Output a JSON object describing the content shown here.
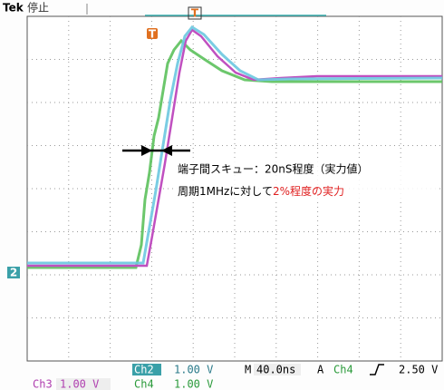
{
  "header": {
    "brand": "Tek",
    "status": "停止"
  },
  "markers": {
    "channel": "2",
    "trigger": "T"
  },
  "annotation": {
    "line1": "端子間スキュー：20nS程度（実力値）",
    "line2_prefix": "周期1MHzに対して",
    "line2_highlight": "2%程度の実力"
  },
  "readout": {
    "ch2_label": "Ch2",
    "ch2_scale": "1.00 V",
    "timebase_label": "M",
    "timebase": "40.0ns",
    "trigger_label": "A",
    "trigger_source": "Ch4",
    "trigger_level": "2.50 V",
    "ch3_label": "Ch3",
    "ch3_scale": "1.00 V",
    "ch4_label": "Ch4",
    "ch4_scale": "1.00 V"
  }
}
